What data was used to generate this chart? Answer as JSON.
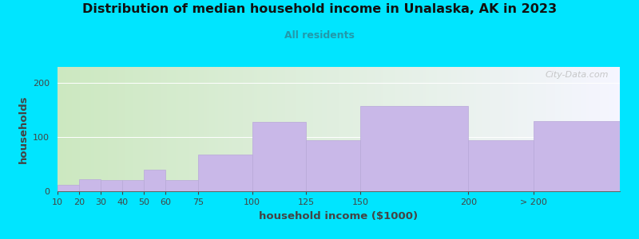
{
  "title": "Distribution of median household income in Unalaska, AK in 2023",
  "subtitle": "All residents",
  "xlabel": "household income ($1000)",
  "ylabel": "households",
  "bar_color": "#c9b8e8",
  "bar_edgecolor": "#b8a8d8",
  "background_outer": "#00e5ff",
  "background_left": "#cce8c0",
  "background_right": "#f5f5ff",
  "values": [
    12,
    22,
    20,
    20,
    40,
    20,
    68,
    128,
    95,
    158,
    95,
    130
  ],
  "positions": [
    10,
    20,
    30,
    40,
    50,
    60,
    75,
    100,
    125,
    150,
    200,
    230
  ],
  "widths": [
    10,
    10,
    10,
    10,
    10,
    15,
    25,
    25,
    25,
    50,
    30,
    40
  ],
  "tick_positions": [
    10,
    20,
    30,
    40,
    50,
    60,
    75,
    100,
    125,
    150,
    200,
    230
  ],
  "tick_labels": [
    "10",
    "20",
    "30",
    "40",
    "50",
    "60",
    "75",
    "100",
    "125",
    "150",
    "200",
    "> 200"
  ],
  "yticks": [
    0,
    100,
    200
  ],
  "ylim": [
    0,
    230
  ],
  "xlim": [
    10,
    270
  ],
  "watermark": "City-Data.com"
}
